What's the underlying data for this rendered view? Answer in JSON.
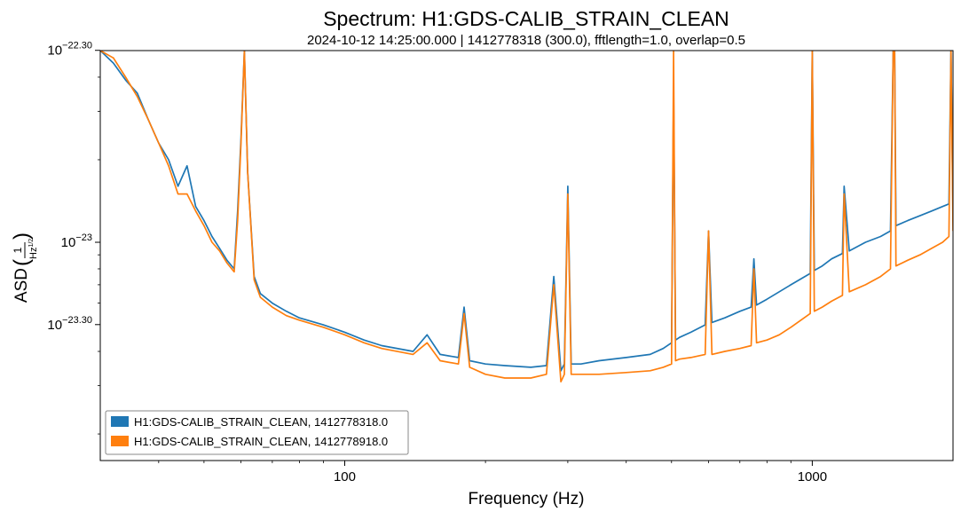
{
  "chart_data": {
    "type": "line",
    "title": "Spectrum: H1:GDS-CALIB_STRAIN_CLEAN",
    "subtitle": "2024-10-12 14:25:00.000 | 1412778318 (300.0), fftlength=1.0, overlap=0.5",
    "xlabel": "Frequency (Hz)",
    "ylabel": "ASD",
    "ylabel_unit_fraction": {
      "numerator": "1",
      "denominator_base": "Hz",
      "denominator_exp": "1/2"
    },
    "x_scale": "log",
    "y_scale": "log",
    "xlim": [
      30,
      2000
    ],
    "ylim": [
      1.6e-24,
      5e-23
    ],
    "x_ticks": [
      {
        "value": 100,
        "label": "100"
      },
      {
        "value": 1000,
        "label": "1000"
      }
    ],
    "y_ticks": [
      {
        "value": 5.01e-23,
        "base": "10",
        "exp": "−22.30"
      },
      {
        "value": 1e-23,
        "base": "10",
        "exp": "−23"
      },
      {
        "value": 5.01e-24,
        "base": "10",
        "exp": "−23.30"
      }
    ],
    "grid": false,
    "legend_position": "lower-left",
    "series": [
      {
        "name": "H1:GDS-CALIB_STRAIN_CLEAN, 1412778318.0",
        "color": "#1f77b4",
        "x": [
          30,
          32,
          34,
          36,
          38,
          40,
          42,
          44,
          46,
          48,
          50,
          52,
          54,
          56,
          58,
          59,
          60,
          61,
          62,
          64,
          66,
          70,
          75,
          80,
          90,
          100,
          110,
          120,
          140,
          150,
          160,
          175,
          180,
          185,
          200,
          220,
          250,
          270,
          280,
          290,
          295,
          300,
          305,
          320,
          350,
          400,
          450,
          480,
          500,
          505,
          510,
          520,
          550,
          590,
          600,
          610,
          650,
          700,
          740,
          750,
          760,
          800,
          850,
          900,
          990,
          1000,
          1010,
          1050,
          1100,
          1160,
          1170,
          1200,
          1300,
          1400,
          1470,
          1490,
          1500,
          1510,
          1600,
          1700,
          1800,
          1900,
          1960,
          1980,
          2000
        ],
        "y": [
          5e-23,
          4.5e-23,
          3.9e-23,
          3.5e-23,
          2.8e-23,
          2.3e-23,
          2e-23,
          1.6e-23,
          1.9e-23,
          1.35e-23,
          1.2e-23,
          1.05e-23,
          9.5e-24,
          8.6e-24,
          8e-24,
          1.3e-23,
          2.4e-23,
          5e-23,
          1.8e-23,
          7.5e-24,
          6.5e-24,
          6e-24,
          5.6e-24,
          5.3e-24,
          5e-24,
          4.7e-24,
          4.4e-24,
          4.2e-24,
          4e-24,
          4.6e-24,
          3.9e-24,
          3.8e-24,
          5.8e-24,
          3.7e-24,
          3.6e-24,
          3.55e-24,
          3.5e-24,
          3.55e-24,
          7.5e-24,
          3.4e-24,
          3.6e-24,
          1.6e-23,
          3.6e-24,
          3.6e-24,
          3.7e-24,
          3.8e-24,
          3.9e-24,
          4.1e-24,
          4.3e-24,
          3.5e-23,
          4.4e-24,
          4.5e-24,
          4.7e-24,
          5e-24,
          1.1e-23,
          5.1e-24,
          5.3e-24,
          5.6e-24,
          5.8e-24,
          8.7e-24,
          5.9e-24,
          6.2e-24,
          6.6e-24,
          7e-24,
          7.7e-24,
          5e-23,
          7.9e-24,
          8.2e-24,
          8.7e-24,
          9.1e-24,
          1.6e-23,
          9.3e-24,
          1e-23,
          1.05e-23,
          1.1e-23,
          5e-23,
          5e-23,
          1.15e-23,
          1.2e-23,
          1.25e-23,
          1.3e-23,
          1.35e-23,
          1.38e-23,
          5e-23,
          1.3e-23
        ]
      },
      {
        "name": "H1:GDS-CALIB_STRAIN_CLEAN, 1412778918.0",
        "color": "#ff7f0e",
        "x": [
          30,
          32,
          34,
          36,
          38,
          40,
          42,
          44,
          46,
          48,
          50,
          52,
          54,
          56,
          58,
          59,
          60,
          61,
          62,
          64,
          66,
          70,
          75,
          80,
          90,
          100,
          110,
          120,
          140,
          150,
          160,
          175,
          180,
          185,
          200,
          220,
          250,
          270,
          280,
          290,
          295,
          300,
          305,
          320,
          350,
          400,
          450,
          480,
          500,
          505,
          510,
          520,
          550,
          590,
          600,
          610,
          650,
          700,
          740,
          750,
          760,
          800,
          850,
          900,
          990,
          1000,
          1010,
          1050,
          1100,
          1160,
          1170,
          1200,
          1300,
          1400,
          1470,
          1490,
          1500,
          1510,
          1600,
          1700,
          1800,
          1900,
          1960,
          1980,
          2000
        ],
        "y": [
          5e-23,
          4.7e-23,
          4e-23,
          3.4e-23,
          2.8e-23,
          2.3e-23,
          1.9e-23,
          1.5e-23,
          1.5e-23,
          1.3e-23,
          1.15e-23,
          1e-23,
          9.3e-24,
          8.4e-24,
          7.8e-24,
          1.2e-23,
          2.3e-23,
          5e-23,
          1.8e-23,
          7.3e-24,
          6.3e-24,
          5.8e-24,
          5.4e-24,
          5.2e-24,
          4.9e-24,
          4.6e-24,
          4.3e-24,
          4.1e-24,
          3.9e-24,
          4.3e-24,
          3.7e-24,
          3.6e-24,
          5.5e-24,
          3.5e-24,
          3.3e-24,
          3.2e-24,
          3.2e-24,
          3.3e-24,
          7e-24,
          3.1e-24,
          3.3e-24,
          1.5e-23,
          3.3e-24,
          3.3e-24,
          3.3e-24,
          3.35e-24,
          3.4e-24,
          3.5e-24,
          3.6e-24,
          5e-23,
          3.7e-24,
          3.75e-24,
          3.8e-24,
          3.9e-24,
          1.1e-23,
          3.9e-24,
          4e-24,
          4.1e-24,
          4.2e-24,
          8e-24,
          4.3e-24,
          4.4e-24,
          4.6e-24,
          4.9e-24,
          5.5e-24,
          5e-23,
          5.6e-24,
          5.8e-24,
          6.1e-24,
          6.4e-24,
          1.5e-23,
          6.6e-24,
          7e-24,
          7.5e-24,
          8e-24,
          5e-23,
          5e-23,
          8.2e-24,
          8.6e-24,
          9e-24,
          9.5e-24,
          1e-23,
          1.05e-23,
          5e-23,
          1.1e-23
        ]
      }
    ]
  }
}
